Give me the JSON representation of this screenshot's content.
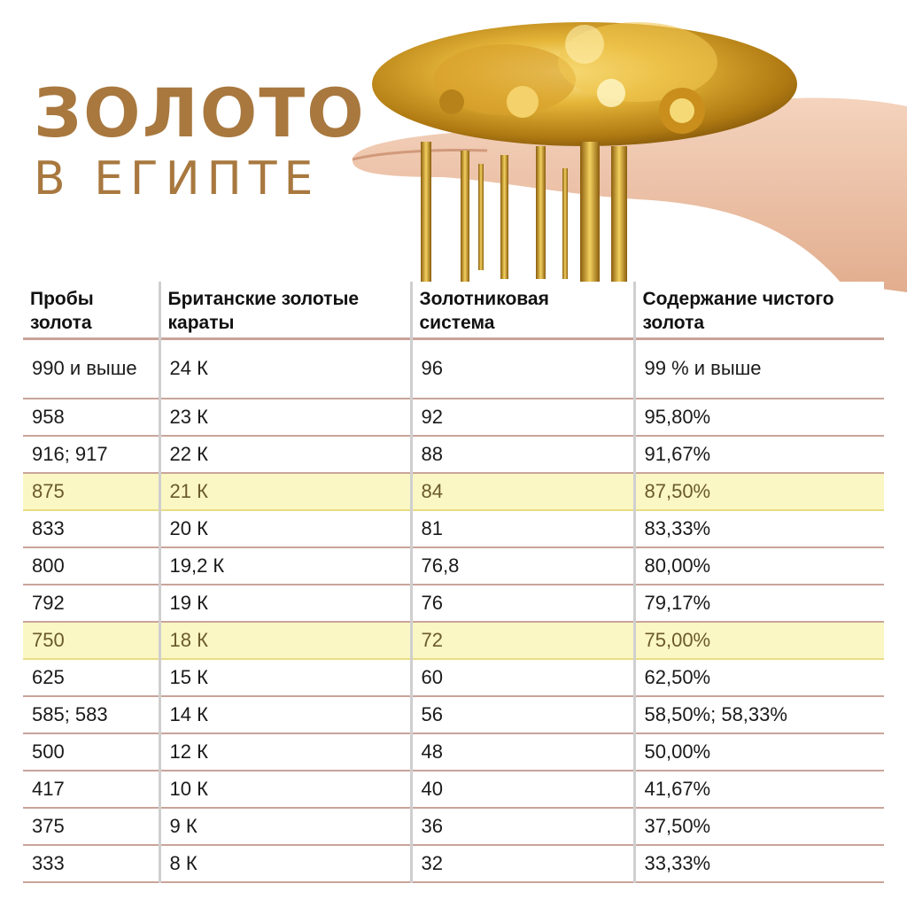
{
  "title": {
    "line1": "ЗОЛОТО",
    "line2": "В  ЕГИПТЕ"
  },
  "colors": {
    "title": "#a8783f",
    "highlight": "#fbf7c4",
    "row_border": "#c9a49a"
  },
  "table": {
    "headers": [
      "Пробы золота",
      "Британские золотые караты",
      "Золотниковая система",
      "Содержание чистого золота"
    ],
    "rows": [
      {
        "cells": [
          "990 и выше",
          "24 К",
          "96",
          "99 % и выше"
        ],
        "highlight": false
      },
      {
        "cells": [
          "958",
          "23 К",
          "92",
          "95,80%"
        ],
        "highlight": false
      },
      {
        "cells": [
          "916; 917",
          "22 К",
          "88",
          "91,67%"
        ],
        "highlight": false
      },
      {
        "cells": [
          "875",
          "21 К",
          "84",
          "87,50%"
        ],
        "highlight": true
      },
      {
        "cells": [
          "833",
          "20 К",
          "81",
          "83,33%"
        ],
        "highlight": false
      },
      {
        "cells": [
          "800",
          "19,2 К",
          "76,8",
          "80,00%"
        ],
        "highlight": false
      },
      {
        "cells": [
          "792",
          "19 К",
          "76",
          "79,17%"
        ],
        "highlight": false
      },
      {
        "cells": [
          "750",
          "18 К",
          "72",
          "75,00%"
        ],
        "highlight": true
      },
      {
        "cells": [
          "625",
          "15 К",
          "60",
          "62,50%"
        ],
        "highlight": false
      },
      {
        "cells": [
          "585; 583",
          "14 К",
          "56",
          "58,50%; 58,33%"
        ],
        "highlight": false
      },
      {
        "cells": [
          "500",
          "12 К",
          "48",
          "50,00%"
        ],
        "highlight": false
      },
      {
        "cells": [
          "417",
          "10 К",
          "40",
          "41,67%"
        ],
        "highlight": false
      },
      {
        "cells": [
          "375",
          "9 К",
          "36",
          "37,50%"
        ],
        "highlight": false
      },
      {
        "cells": [
          "333",
          "8 К",
          "32",
          "33,33%"
        ],
        "highlight": false
      }
    ]
  }
}
